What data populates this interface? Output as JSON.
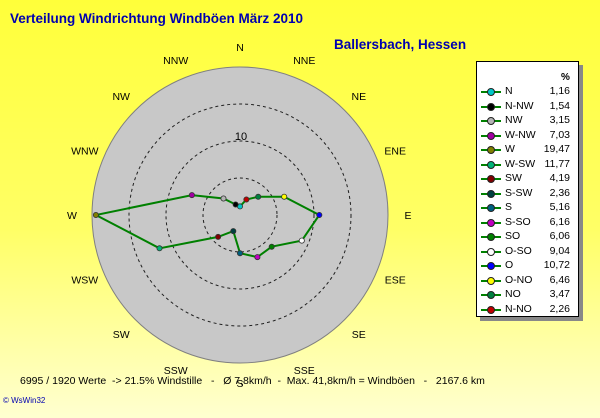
{
  "chart_data": {
    "type": "radar",
    "title": "Verteilung Windrichtung Windböen  März 2010",
    "subtitle": "Ballersbach, Hessen",
    "unit": "%",
    "ring_label": "10",
    "rmax": 20,
    "directions": [
      "N",
      "NNE",
      "NE",
      "ENE",
      "E",
      "ESE",
      "SE",
      "SSE",
      "S",
      "SSW",
      "SW",
      "WSW",
      "W",
      "WNW",
      "NW",
      "NNW"
    ],
    "series": [
      {
        "name": "N",
        "value": 1.16,
        "color": "#00c8c8"
      },
      {
        "name": "N-NW",
        "value": 1.54,
        "color": "#000000"
      },
      {
        "name": "NW",
        "value": 3.15,
        "color": "#b4b4b4"
      },
      {
        "name": "W-NW",
        "value": 7.03,
        "color": "#a000a0"
      },
      {
        "name": "W",
        "value": 19.47,
        "color": "#808000"
      },
      {
        "name": "W-SW",
        "value": 11.77,
        "color": "#00b478"
      },
      {
        "name": "SW",
        "value": 4.19,
        "color": "#800000"
      },
      {
        "name": "S-SW",
        "value": 2.36,
        "color": "#004040"
      },
      {
        "name": "S",
        "value": 5.16,
        "color": "#006080"
      },
      {
        "name": "S-SO",
        "value": 6.16,
        "color": "#c000c0"
      },
      {
        "name": "SO",
        "value": 6.06,
        "color": "#008000"
      },
      {
        "name": "O-SO",
        "value": 9.04,
        "color": "#ffffff"
      },
      {
        "name": "O",
        "value": 10.72,
        "color": "#0000ff"
      },
      {
        "name": "O-NO",
        "value": 6.46,
        "color": "#ffff00"
      },
      {
        "name": "NO",
        "value": 3.47,
        "color": "#008040"
      },
      {
        "name": "N-NO",
        "value": 2.26,
        "color": "#c00000"
      }
    ]
  },
  "footer": "6995 / 1920 Werte  -> 21.5% Windstille   -   Ø 7,8km/h  -  Max. 41,8km/h = Windböen   -   2167.6 km",
  "credit": "© WsWin32"
}
